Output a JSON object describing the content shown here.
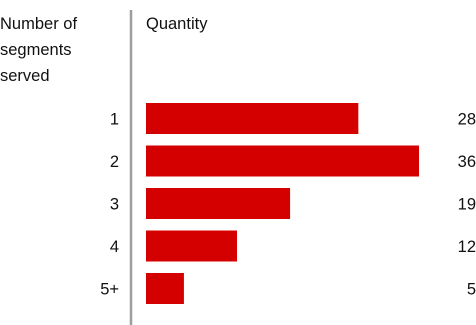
{
  "chart_data": {
    "type": "bar",
    "orientation": "horizontal",
    "categories": [
      "1",
      "2",
      "3",
      "4",
      "5+"
    ],
    "values": [
      28,
      36,
      19,
      12,
      5
    ],
    "category_header": [
      "Number of",
      "segments",
      "served"
    ],
    "value_header": "Quantity",
    "data_labels": [
      "28",
      "36",
      "19",
      "12",
      "5"
    ],
    "xlim": [
      0,
      36
    ],
    "grid": false,
    "legend": "none",
    "bar_color": "#d40000",
    "divider_color": "#9e9e9e"
  }
}
